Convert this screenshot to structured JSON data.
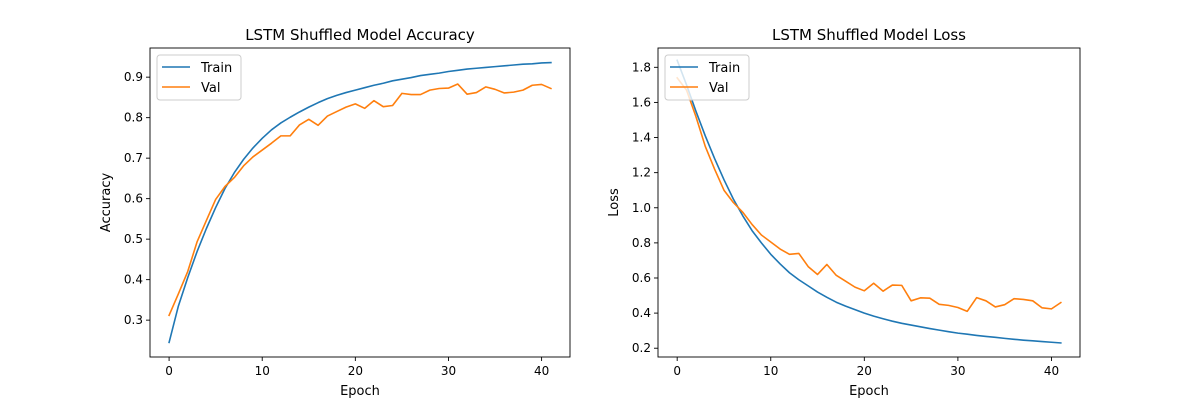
{
  "colors": {
    "train": "#1f77b4",
    "val": "#ff7f0e",
    "axes": "#000000"
  },
  "chart_data": [
    {
      "type": "line",
      "title": "LSTM Shuffled Model Accuracy",
      "xlabel": "Epoch",
      "ylabel": "Accuracy",
      "xlim": [
        -2.05,
        43.05
      ],
      "ylim": [
        0.209,
        0.972
      ],
      "xticks": [
        0,
        10,
        20,
        30,
        40
      ],
      "yticks": [
        0.3,
        0.4,
        0.5,
        0.6,
        0.7,
        0.8,
        0.9
      ],
      "xtick_labels": [
        "0",
        "10",
        "20",
        "30",
        "40"
      ],
      "ytick_labels": [
        "0.3",
        "0.4",
        "0.5",
        "0.6",
        "0.7",
        "0.8",
        "0.9"
      ],
      "grid": false,
      "legend_position": "upper-left",
      "series": [
        {
          "name": "Train",
          "x": [
            0,
            1,
            2,
            3,
            4,
            5,
            6,
            7,
            8,
            9,
            10,
            11,
            12,
            13,
            14,
            15,
            16,
            17,
            18,
            19,
            20,
            21,
            22,
            23,
            24,
            25,
            26,
            27,
            28,
            29,
            30,
            31,
            32,
            33,
            34,
            35,
            36,
            37,
            38,
            39,
            40,
            41
          ],
          "y": [
            0.245,
            0.335,
            0.405,
            0.469,
            0.526,
            0.578,
            0.625,
            0.664,
            0.697,
            0.725,
            0.749,
            0.77,
            0.787,
            0.801,
            0.814,
            0.826,
            0.837,
            0.847,
            0.855,
            0.862,
            0.868,
            0.874,
            0.88,
            0.885,
            0.891,
            0.895,
            0.899,
            0.904,
            0.907,
            0.91,
            0.914,
            0.917,
            0.92,
            0.922,
            0.924,
            0.926,
            0.928,
            0.93,
            0.932,
            0.933,
            0.935,
            0.936
          ]
        },
        {
          "name": "Val",
          "x": [
            0,
            1,
            2,
            3,
            4,
            5,
            6,
            7,
            8,
            9,
            10,
            11,
            12,
            13,
            14,
            15,
            16,
            17,
            18,
            19,
            20,
            21,
            22,
            23,
            24,
            25,
            26,
            27,
            28,
            29,
            30,
            31,
            32,
            33,
            34,
            35,
            36,
            37,
            38,
            39,
            40,
            41
          ],
          "y": [
            0.312,
            0.365,
            0.42,
            0.493,
            0.546,
            0.598,
            0.63,
            0.652,
            0.681,
            0.703,
            0.72,
            0.737,
            0.755,
            0.755,
            0.782,
            0.796,
            0.781,
            0.804,
            0.815,
            0.826,
            0.834,
            0.823,
            0.842,
            0.827,
            0.83,
            0.86,
            0.857,
            0.857,
            0.868,
            0.872,
            0.873,
            0.883,
            0.858,
            0.862,
            0.876,
            0.87,
            0.861,
            0.863,
            0.868,
            0.88,
            0.882,
            0.872
          ]
        }
      ]
    },
    {
      "type": "line",
      "title": "LSTM Shuffled Model Loss",
      "xlabel": "Epoch",
      "ylabel": "Loss",
      "xlim": [
        -2.05,
        43.05
      ],
      "ylim": [
        0.15,
        1.91
      ],
      "xticks": [
        0,
        10,
        20,
        30,
        40
      ],
      "yticks": [
        0.2,
        0.4,
        0.6,
        0.8,
        1.0,
        1.2,
        1.4,
        1.6,
        1.8
      ],
      "xtick_labels": [
        "0",
        "10",
        "20",
        "30",
        "40"
      ],
      "ytick_labels": [
        "0.2",
        "0.4",
        "0.6",
        "0.8",
        "1.0",
        "1.2",
        "1.4",
        "1.6",
        "1.8"
      ],
      "grid": false,
      "legend_position": "upper-left",
      "series": [
        {
          "name": "Train",
          "x": [
            0,
            1,
            2,
            3,
            4,
            5,
            6,
            7,
            8,
            9,
            10,
            11,
            12,
            13,
            14,
            15,
            16,
            17,
            18,
            19,
            20,
            21,
            22,
            23,
            24,
            25,
            26,
            27,
            28,
            29,
            30,
            31,
            32,
            33,
            34,
            35,
            36,
            37,
            38,
            39,
            40,
            41
          ],
          "y": [
            1.84,
            1.7,
            1.55,
            1.41,
            1.28,
            1.16,
            1.05,
            0.955,
            0.87,
            0.8,
            0.735,
            0.68,
            0.63,
            0.59,
            0.555,
            0.52,
            0.49,
            0.462,
            0.44,
            0.42,
            0.4,
            0.383,
            0.368,
            0.354,
            0.342,
            0.332,
            0.322,
            0.312,
            0.303,
            0.294,
            0.286,
            0.28,
            0.273,
            0.267,
            0.262,
            0.256,
            0.251,
            0.246,
            0.242,
            0.238,
            0.234,
            0.23
          ]
        },
        {
          "name": "Val",
          "x": [
            0,
            1,
            2,
            3,
            4,
            5,
            6,
            7,
            8,
            9,
            10,
            11,
            12,
            13,
            14,
            15,
            16,
            17,
            18,
            19,
            20,
            21,
            22,
            23,
            24,
            25,
            26,
            27,
            28,
            29,
            30,
            31,
            32,
            33,
            34,
            35,
            36,
            37,
            38,
            39,
            40,
            41
          ],
          "y": [
            1.74,
            1.67,
            1.52,
            1.35,
            1.22,
            1.1,
            1.03,
            0.975,
            0.905,
            0.845,
            0.805,
            0.765,
            0.735,
            0.74,
            0.665,
            0.62,
            0.677,
            0.615,
            0.582,
            0.548,
            0.527,
            0.57,
            0.525,
            0.56,
            0.558,
            0.47,
            0.487,
            0.485,
            0.45,
            0.444,
            0.432,
            0.41,
            0.488,
            0.47,
            0.435,
            0.448,
            0.482,
            0.478,
            0.47,
            0.43,
            0.424,
            0.46
          ]
        }
      ]
    }
  ]
}
